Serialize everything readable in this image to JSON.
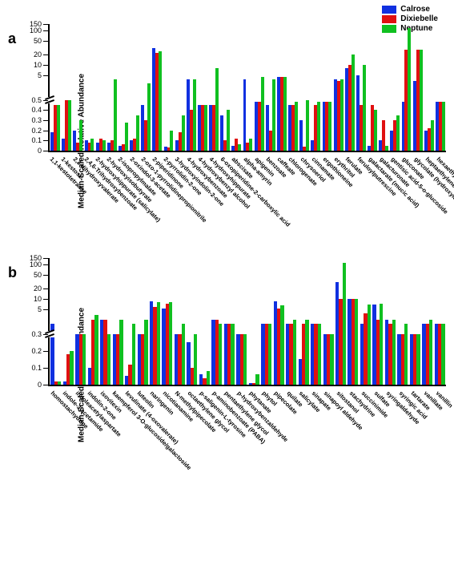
{
  "legend": {
    "items": [
      {
        "label": "Calrose",
        "color": "#1030e0"
      },
      {
        "label": "Dixiebelle",
        "color": "#e01010"
      },
      {
        "label": "Neptune",
        "color": "#10c020"
      }
    ]
  },
  "ylabel": "Median-Scaled Relative Abundance",
  "panels": {
    "a": {
      "label": "a",
      "upper": {
        "min": 1,
        "max": 150,
        "ticks": [
          5,
          10,
          20,
          50,
          100,
          150
        ],
        "log": true
      },
      "lower": {
        "min": 0,
        "max": 0.5,
        "ticks": [
          0,
          0.1,
          0.2,
          0.3,
          0.4,
          0.5
        ]
      },
      "categories": [
        {
          "name": "1,1-kestotetraose",
          "v": [
            0.18,
            0.45,
            0.45
          ]
        },
        {
          "name": "1-kestose",
          "v": [
            0.12,
            0.5,
            0.5
          ]
        },
        {
          "name": "2,3-dihydroxyvalerate",
          "v": [
            0.2,
            0.08,
            0.3
          ]
        },
        {
          "name": "2,4,6-Trihydroxybenzoate",
          "v": [
            0.1,
            0.08,
            0.12
          ]
        },
        {
          "name": "2-hydroxyhippurate (salicylate)",
          "v": [
            0.08,
            0.12,
            0.1
          ]
        },
        {
          "name": "2-hydroxyisobutyrate",
          "v": [
            0.08,
            0.1,
            4.0
          ]
        },
        {
          "name": "2-isopropylmalate",
          "v": [
            0.05,
            0.06,
            0.28
          ]
        },
        {
          "name": "2-oxindol-3-acetate",
          "v": [
            0.1,
            0.12,
            0.35
          ]
        },
        {
          "name": "2-oxo-1-pyrrolidinepropionitrile",
          "v": [
            0.45,
            0.3,
            3.0
          ]
        },
        {
          "name": "2-piperidinone",
          "v": [
            30,
            22,
            25
          ]
        },
        {
          "name": "2-pyrrolidin-2-one",
          "v": [
            0.04,
            0.03,
            0.2
          ]
        },
        {
          "name": "3-hydroxyindolin-2-one",
          "v": [
            0.1,
            0.18,
            0.35
          ]
        },
        {
          "name": "4-hydroxybenzoate",
          "v": [
            4.0,
            0.4,
            4.0
          ]
        },
        {
          "name": "4-hydroxybenzyl alcohol",
          "v": [
            0.45,
            0.45,
            0.45
          ]
        },
        {
          "name": "4-hydroxyhippurate",
          "v": [
            0.45,
            0.45,
            8.0
          ]
        },
        {
          "name": "6-oxopiperidine-2-carboxylic acid",
          "v": [
            0.35,
            0.1,
            0.4
          ]
        },
        {
          "name": "abscisate",
          "v": [
            0.05,
            0.12,
            0.06
          ]
        },
        {
          "name": "alpha-amyrin",
          "v": [
            4.0,
            0.08,
            0.12
          ]
        },
        {
          "name": "apigenin",
          "v": [
            0.48,
            0.48,
            4.5
          ]
        },
        {
          "name": "benzoate",
          "v": [
            0.45,
            0.2,
            4.0
          ]
        },
        {
          "name": "caffeate",
          "v": [
            4.5,
            4.5,
            4.5
          ]
        },
        {
          "name": "chlorogenate",
          "v": [
            0.45,
            0.45,
            0.48
          ]
        },
        {
          "name": "chrysoeriol",
          "v": [
            0.3,
            0.04,
            0.5
          ]
        },
        {
          "name": "cinnamate",
          "v": [
            0.1,
            0.45,
            0.48
          ]
        },
        {
          "name": "ergothioneine",
          "v": [
            0.48,
            0.48,
            0.48
          ]
        },
        {
          "name": "erythritol",
          "v": [
            4.0,
            3.5,
            4.0
          ]
        },
        {
          "name": "ferulate",
          "v": [
            8.0,
            10,
            20
          ]
        },
        {
          "name": "feruloylputrescine",
          "v": [
            5.0,
            0.45,
            10
          ]
        },
        {
          "name": "galactarate (mucic acid)",
          "v": [
            0.05,
            0.45,
            0.4
          ]
        },
        {
          "name": "galacturonate",
          "v": [
            0.1,
            0.3,
            0.05
          ]
        },
        {
          "name": "gentisic acid-5-o-glucoside",
          "v": [
            0.2,
            0.3,
            0.35
          ]
        },
        {
          "name": "gluconate",
          "v": [
            0.48,
            28,
            115
          ]
        },
        {
          "name": "glycolate (hydroxylacetate)",
          "v": [
            3.5,
            28,
            28
          ]
        },
        {
          "name": "heptaethylene glycol",
          "v": [
            0.2,
            0.22,
            0.3
          ]
        },
        {
          "name": "hexaethylene glycol",
          "v": [
            0.48,
            0.48,
            0.48
          ]
        }
      ]
    },
    "b": {
      "label": "b",
      "upper": {
        "min": 1,
        "max": 150,
        "ticks": [
          5,
          10,
          20,
          50,
          100,
          150
        ],
        "log": true
      },
      "lower": {
        "min": 0,
        "max": 0.3,
        "ticks": [
          0,
          0.1,
          0.2,
          0.3
        ]
      },
      "categories": [
        {
          "name": "homostachydrine",
          "v": [
            2.0,
            0.02,
            0.02
          ]
        },
        {
          "name": "indole-3-acetamide",
          "v": [
            0.02,
            0.18,
            0.2
          ]
        },
        {
          "name": "indoleacetylaspartate",
          "v": [
            0.3,
            0.3,
            0.3
          ]
        },
        {
          "name": "indolin-2-one",
          "v": [
            0.1,
            2.5,
            3.5
          ]
        },
        {
          "name": "isovitexin",
          "v": [
            2.5,
            2.5,
            0.3
          ]
        },
        {
          "name": "kaempferol 3-O-glucoside/galactoside",
          "v": [
            0.3,
            0.3,
            2.5
          ]
        },
        {
          "name": "levulinate (4-oxovalerate)",
          "v": [
            0.05,
            0.12,
            2.0
          ]
        },
        {
          "name": "luteolin",
          "v": [
            0.3,
            0.3,
            2.5
          ]
        },
        {
          "name": "naringenin",
          "v": [
            8.5,
            6.0,
            8.0
          ]
        },
        {
          "name": "nicotianamine",
          "v": [
            5.5,
            7.5,
            8.0
          ]
        },
        {
          "name": "N-methylpipecolate",
          "v": [
            0.3,
            0.3,
            2.0
          ]
        },
        {
          "name": "octaethylene glycol",
          "v": [
            0.25,
            0.1,
            0.3
          ]
        },
        {
          "name": "p-saligenin-L-tyrosine",
          "v": [
            0.06,
            0.04,
            0.08
          ]
        },
        {
          "name": "p-aminobenzoate (PABA)",
          "v": [
            2.5,
            2.5,
            2.0
          ]
        },
        {
          "name": "pentaethylene glycol",
          "v": [
            2.0,
            2.0,
            2.0
          ]
        },
        {
          "name": "p-hydroxybenzaldehyde",
          "v": [
            0.3,
            0.3,
            0.3
          ]
        },
        {
          "name": "phytanate",
          "v": [
            0.01,
            0.01,
            0.06
          ]
        },
        {
          "name": "phytol",
          "v": [
            2.0,
            2.0,
            2.0
          ]
        },
        {
          "name": "pipecolate",
          "v": [
            8.5,
            5.5,
            6.5
          ]
        },
        {
          "name": "quilate",
          "v": [
            2.0,
            2.0,
            2.5
          ]
        },
        {
          "name": "salicylate",
          "v": [
            0.15,
            2.0,
            2.5
          ]
        },
        {
          "name": "sinapate",
          "v": [
            2.0,
            2.0,
            2.0
          ]
        },
        {
          "name": "sinapoyl aldehyde",
          "v": [
            0.3,
            0.3,
            0.3
          ]
        },
        {
          "name": "sitostanol",
          "v": [
            30,
            10,
            110
          ]
        },
        {
          "name": "stachydrine",
          "v": [
            10,
            10,
            10
          ]
        },
        {
          "name": "succinimide",
          "v": [
            2.0,
            4.0,
            7.0
          ]
        },
        {
          "name": "sulfate",
          "v": [
            7.0,
            2.5,
            7.5
          ]
        },
        {
          "name": "syringaldehyde",
          "v": [
            2.5,
            2.0,
            2.5
          ]
        },
        {
          "name": "syringic acid",
          "v": [
            0.3,
            0.3,
            2.0
          ]
        },
        {
          "name": "tartarate",
          "v": [
            0.3,
            0.3,
            0.3
          ]
        },
        {
          "name": "vanillate",
          "v": [
            2.0,
            2.0,
            2.5
          ]
        },
        {
          "name": "vanillin",
          "v": [
            2.0,
            2.0,
            2.0
          ]
        }
      ]
    }
  },
  "colors": {
    "bg": "#ffffff",
    "axis": "#000000"
  }
}
